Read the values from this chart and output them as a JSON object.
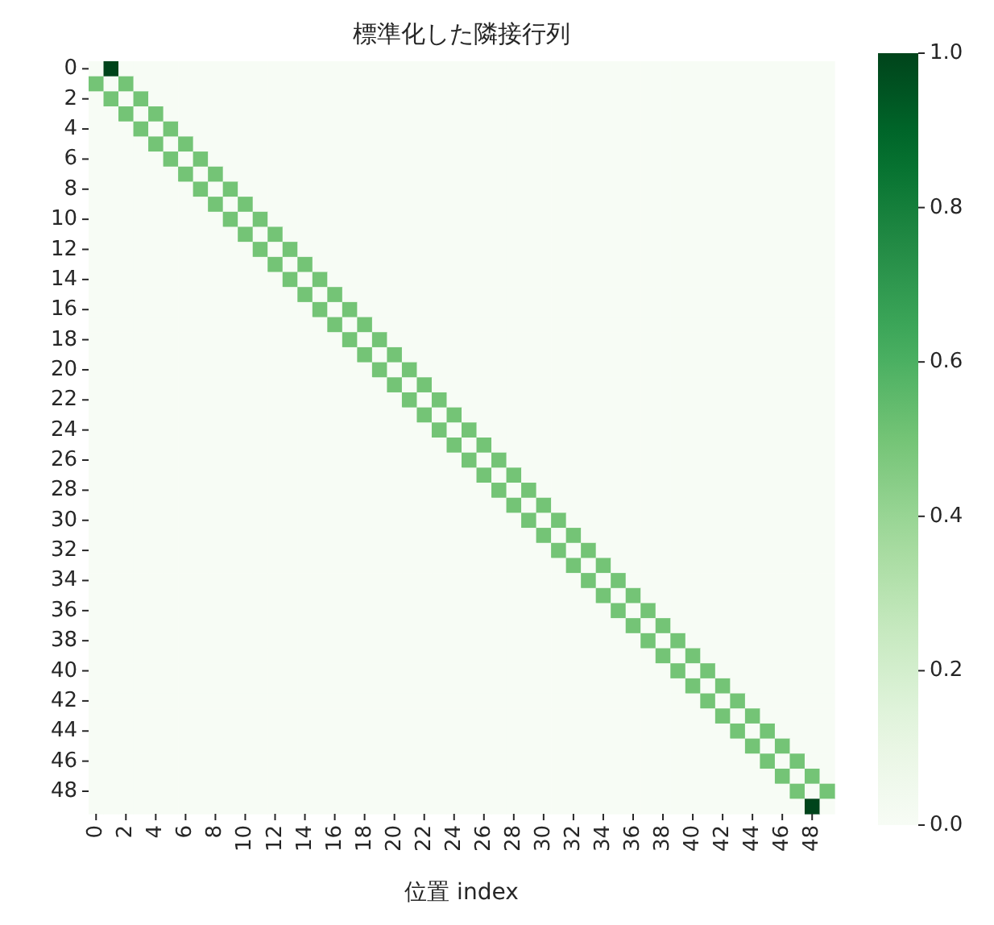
{
  "chart_data": {
    "type": "heatmap",
    "title": "標準化した隣接行列",
    "xlabel": "位置 index",
    "categories": [
      "0",
      null,
      "2",
      null,
      "4",
      null,
      "6",
      null,
      "8",
      null,
      "10",
      null,
      "12",
      null,
      "14",
      null,
      "16",
      null,
      "18",
      null,
      "20",
      null,
      "22",
      null,
      "24",
      null,
      "26",
      null,
      "28",
      null,
      "30",
      null,
      "32",
      null,
      "34",
      null,
      "36",
      null,
      "38",
      null,
      "40",
      null,
      "42",
      null,
      "44",
      null,
      "46",
      null,
      "48",
      null
    ],
    "y_categories": [
      "0",
      null,
      "2",
      null,
      "4",
      null,
      "6",
      null,
      "8",
      null,
      "10",
      null,
      "12",
      null,
      "14",
      null,
      "16",
      null,
      "18",
      null,
      "20",
      null,
      "22",
      null,
      "24",
      null,
      "26",
      null,
      "28",
      null,
      "30",
      null,
      "32",
      null,
      "34",
      null,
      "36",
      null,
      "38",
      null,
      "40",
      null,
      "42",
      null,
      "44",
      null,
      "46",
      null,
      "48",
      null
    ],
    "clim": [
      0,
      1
    ],
    "cticks": [
      {
        "value": 0,
        "label": "0.0"
      },
      {
        "value": 0.2,
        "label": "0.2"
      },
      {
        "value": 0.4,
        "label": "0.4"
      },
      {
        "value": 0.6,
        "label": "0.6"
      },
      {
        "value": 0.8,
        "label": "0.8"
      },
      {
        "value": 1,
        "label": "1.0"
      }
    ],
    "cells": [
      [
        0,
        1,
        0,
        0,
        0,
        0,
        0,
        0,
        0,
        0,
        0,
        0,
        0,
        0,
        0,
        0,
        0,
        0,
        0,
        0,
        0,
        0,
        0,
        0,
        0,
        0,
        0,
        0,
        0,
        0,
        0,
        0,
        0,
        0,
        0,
        0,
        0,
        0,
        0,
        0,
        0,
        0,
        0,
        0,
        0,
        0,
        0,
        0,
        0,
        0
      ],
      [
        0.5,
        0,
        0.5,
        0,
        0,
        0,
        0,
        0,
        0,
        0,
        0,
        0,
        0,
        0,
        0,
        0,
        0,
        0,
        0,
        0,
        0,
        0,
        0,
        0,
        0,
        0,
        0,
        0,
        0,
        0,
        0,
        0,
        0,
        0,
        0,
        0,
        0,
        0,
        0,
        0,
        0,
        0,
        0,
        0,
        0,
        0,
        0,
        0,
        0,
        0
      ],
      [
        0,
        0.5,
        0,
        0.5,
        0,
        0,
        0,
        0,
        0,
        0,
        0,
        0,
        0,
        0,
        0,
        0,
        0,
        0,
        0,
        0,
        0,
        0,
        0,
        0,
        0,
        0,
        0,
        0,
        0,
        0,
        0,
        0,
        0,
        0,
        0,
        0,
        0,
        0,
        0,
        0,
        0,
        0,
        0,
        0,
        0,
        0,
        0,
        0,
        0,
        0
      ],
      [
        0,
        0,
        0.5,
        0,
        0.5,
        0,
        0,
        0,
        0,
        0,
        0,
        0,
        0,
        0,
        0,
        0,
        0,
        0,
        0,
        0,
        0,
        0,
        0,
        0,
        0,
        0,
        0,
        0,
        0,
        0,
        0,
        0,
        0,
        0,
        0,
        0,
        0,
        0,
        0,
        0,
        0,
        0,
        0,
        0,
        0,
        0,
        0,
        0,
        0,
        0
      ],
      [
        0,
        0,
        0,
        0.5,
        0,
        0.5,
        0,
        0,
        0,
        0,
        0,
        0,
        0,
        0,
        0,
        0,
        0,
        0,
        0,
        0,
        0,
        0,
        0,
        0,
        0,
        0,
        0,
        0,
        0,
        0,
        0,
        0,
        0,
        0,
        0,
        0,
        0,
        0,
        0,
        0,
        0,
        0,
        0,
        0,
        0,
        0,
        0,
        0,
        0,
        0
      ],
      [
        0,
        0,
        0,
        0,
        0.5,
        0,
        0.5,
        0,
        0,
        0,
        0,
        0,
        0,
        0,
        0,
        0,
        0,
        0,
        0,
        0,
        0,
        0,
        0,
        0,
        0,
        0,
        0,
        0,
        0,
        0,
        0,
        0,
        0,
        0,
        0,
        0,
        0,
        0,
        0,
        0,
        0,
        0,
        0,
        0,
        0,
        0,
        0,
        0,
        0,
        0
      ],
      [
        0,
        0,
        0,
        0,
        0,
        0.5,
        0,
        0.5,
        0,
        0,
        0,
        0,
        0,
        0,
        0,
        0,
        0,
        0,
        0,
        0,
        0,
        0,
        0,
        0,
        0,
        0,
        0,
        0,
        0,
        0,
        0,
        0,
        0,
        0,
        0,
        0,
        0,
        0,
        0,
        0,
        0,
        0,
        0,
        0,
        0,
        0,
        0,
        0,
        0,
        0
      ],
      [
        0,
        0,
        0,
        0,
        0,
        0,
        0.5,
        0,
        0.5,
        0,
        0,
        0,
        0,
        0,
        0,
        0,
        0,
        0,
        0,
        0,
        0,
        0,
        0,
        0,
        0,
        0,
        0,
        0,
        0,
        0,
        0,
        0,
        0,
        0,
        0,
        0,
        0,
        0,
        0,
        0,
        0,
        0,
        0,
        0,
        0,
        0,
        0,
        0,
        0,
        0
      ],
      [
        0,
        0,
        0,
        0,
        0,
        0,
        0,
        0.5,
        0,
        0.5,
        0,
        0,
        0,
        0,
        0,
        0,
        0,
        0,
        0,
        0,
        0,
        0,
        0,
        0,
        0,
        0,
        0,
        0,
        0,
        0,
        0,
        0,
        0,
        0,
        0,
        0,
        0,
        0,
        0,
        0,
        0,
        0,
        0,
        0,
        0,
        0,
        0,
        0,
        0,
        0
      ],
      [
        0,
        0,
        0,
        0,
        0,
        0,
        0,
        0,
        0.5,
        0,
        0.5,
        0,
        0,
        0,
        0,
        0,
        0,
        0,
        0,
        0,
        0,
        0,
        0,
        0,
        0,
        0,
        0,
        0,
        0,
        0,
        0,
        0,
        0,
        0,
        0,
        0,
        0,
        0,
        0,
        0,
        0,
        0,
        0,
        0,
        0,
        0,
        0,
        0,
        0,
        0
      ],
      [
        0,
        0,
        0,
        0,
        0,
        0,
        0,
        0,
        0,
        0.5,
        0,
        0.5,
        0,
        0,
        0,
        0,
        0,
        0,
        0,
        0,
        0,
        0,
        0,
        0,
        0,
        0,
        0,
        0,
        0,
        0,
        0,
        0,
        0,
        0,
        0,
        0,
        0,
        0,
        0,
        0,
        0,
        0,
        0,
        0,
        0,
        0,
        0,
        0,
        0,
        0
      ],
      [
        0,
        0,
        0,
        0,
        0,
        0,
        0,
        0,
        0,
        0,
        0.5,
        0,
        0.5,
        0,
        0,
        0,
        0,
        0,
        0,
        0,
        0,
        0,
        0,
        0,
        0,
        0,
        0,
        0,
        0,
        0,
        0,
        0,
        0,
        0,
        0,
        0,
        0,
        0,
        0,
        0,
        0,
        0,
        0,
        0,
        0,
        0,
        0,
        0,
        0,
        0
      ],
      [
        0,
        0,
        0,
        0,
        0,
        0,
        0,
        0,
        0,
        0,
        0,
        0.5,
        0,
        0.5,
        0,
        0,
        0,
        0,
        0,
        0,
        0,
        0,
        0,
        0,
        0,
        0,
        0,
        0,
        0,
        0,
        0,
        0,
        0,
        0,
        0,
        0,
        0,
        0,
        0,
        0,
        0,
        0,
        0,
        0,
        0,
        0,
        0,
        0,
        0,
        0
      ],
      [
        0,
        0,
        0,
        0,
        0,
        0,
        0,
        0,
        0,
        0,
        0,
        0,
        0.5,
        0,
        0.5,
        0,
        0,
        0,
        0,
        0,
        0,
        0,
        0,
        0,
        0,
        0,
        0,
        0,
        0,
        0,
        0,
        0,
        0,
        0,
        0,
        0,
        0,
        0,
        0,
        0,
        0,
        0,
        0,
        0,
        0,
        0,
        0,
        0,
        0,
        0
      ],
      [
        0,
        0,
        0,
        0,
        0,
        0,
        0,
        0,
        0,
        0,
        0,
        0,
        0,
        0.5,
        0,
        0.5,
        0,
        0,
        0,
        0,
        0,
        0,
        0,
        0,
        0,
        0,
        0,
        0,
        0,
        0,
        0,
        0,
        0,
        0,
        0,
        0,
        0,
        0,
        0,
        0,
        0,
        0,
        0,
        0,
        0,
        0,
        0,
        0,
        0,
        0
      ],
      [
        0,
        0,
        0,
        0,
        0,
        0,
        0,
        0,
        0,
        0,
        0,
        0,
        0,
        0,
        0.5,
        0,
        0.5,
        0,
        0,
        0,
        0,
        0,
        0,
        0,
        0,
        0,
        0,
        0,
        0,
        0,
        0,
        0,
        0,
        0,
        0,
        0,
        0,
        0,
        0,
        0,
        0,
        0,
        0,
        0,
        0,
        0,
        0,
        0,
        0,
        0
      ],
      [
        0,
        0,
        0,
        0,
        0,
        0,
        0,
        0,
        0,
        0,
        0,
        0,
        0,
        0,
        0,
        0.5,
        0,
        0.5,
        0,
        0,
        0,
        0,
        0,
        0,
        0,
        0,
        0,
        0,
        0,
        0,
        0,
        0,
        0,
        0,
        0,
        0,
        0,
        0,
        0,
        0,
        0,
        0,
        0,
        0,
        0,
        0,
        0,
        0,
        0,
        0
      ],
      [
        0,
        0,
        0,
        0,
        0,
        0,
        0,
        0,
        0,
        0,
        0,
        0,
        0,
        0,
        0,
        0,
        0.5,
        0,
        0.5,
        0,
        0,
        0,
        0,
        0,
        0,
        0,
        0,
        0,
        0,
        0,
        0,
        0,
        0,
        0,
        0,
        0,
        0,
        0,
        0,
        0,
        0,
        0,
        0,
        0,
        0,
        0,
        0,
        0,
        0,
        0
      ],
      [
        0,
        0,
        0,
        0,
        0,
        0,
        0,
        0,
        0,
        0,
        0,
        0,
        0,
        0,
        0,
        0,
        0,
        0.5,
        0,
        0.5,
        0,
        0,
        0,
        0,
        0,
        0,
        0,
        0,
        0,
        0,
        0,
        0,
        0,
        0,
        0,
        0,
        0,
        0,
        0,
        0,
        0,
        0,
        0,
        0,
        0,
        0,
        0,
        0,
        0,
        0
      ],
      [
        0,
        0,
        0,
        0,
        0,
        0,
        0,
        0,
        0,
        0,
        0,
        0,
        0,
        0,
        0,
        0,
        0,
        0,
        0.5,
        0,
        0.5,
        0,
        0,
        0,
        0,
        0,
        0,
        0,
        0,
        0,
        0,
        0,
        0,
        0,
        0,
        0,
        0,
        0,
        0,
        0,
        0,
        0,
        0,
        0,
        0,
        0,
        0,
        0,
        0,
        0
      ],
      [
        0,
        0,
        0,
        0,
        0,
        0,
        0,
        0,
        0,
        0,
        0,
        0,
        0,
        0,
        0,
        0,
        0,
        0,
        0,
        0.5,
        0,
        0.5,
        0,
        0,
        0,
        0,
        0,
        0,
        0,
        0,
        0,
        0,
        0,
        0,
        0,
        0,
        0,
        0,
        0,
        0,
        0,
        0,
        0,
        0,
        0,
        0,
        0,
        0,
        0,
        0
      ],
      [
        0,
        0,
        0,
        0,
        0,
        0,
        0,
        0,
        0,
        0,
        0,
        0,
        0,
        0,
        0,
        0,
        0,
        0,
        0,
        0,
        0.5,
        0,
        0.5,
        0,
        0,
        0,
        0,
        0,
        0,
        0,
        0,
        0,
        0,
        0,
        0,
        0,
        0,
        0,
        0,
        0,
        0,
        0,
        0,
        0,
        0,
        0,
        0,
        0,
        0,
        0
      ],
      [
        0,
        0,
        0,
        0,
        0,
        0,
        0,
        0,
        0,
        0,
        0,
        0,
        0,
        0,
        0,
        0,
        0,
        0,
        0,
        0,
        0,
        0.5,
        0,
        0.5,
        0,
        0,
        0,
        0,
        0,
        0,
        0,
        0,
        0,
        0,
        0,
        0,
        0,
        0,
        0,
        0,
        0,
        0,
        0,
        0,
        0,
        0,
        0,
        0,
        0,
        0
      ],
      [
        0,
        0,
        0,
        0,
        0,
        0,
        0,
        0,
        0,
        0,
        0,
        0,
        0,
        0,
        0,
        0,
        0,
        0,
        0,
        0,
        0,
        0,
        0.5,
        0,
        0.5,
        0,
        0,
        0,
        0,
        0,
        0,
        0,
        0,
        0,
        0,
        0,
        0,
        0,
        0,
        0,
        0,
        0,
        0,
        0,
        0,
        0,
        0,
        0,
        0,
        0
      ],
      [
        0,
        0,
        0,
        0,
        0,
        0,
        0,
        0,
        0,
        0,
        0,
        0,
        0,
        0,
        0,
        0,
        0,
        0,
        0,
        0,
        0,
        0,
        0,
        0.5,
        0,
        0.5,
        0,
        0,
        0,
        0,
        0,
        0,
        0,
        0,
        0,
        0,
        0,
        0,
        0,
        0,
        0,
        0,
        0,
        0,
        0,
        0,
        0,
        0,
        0,
        0
      ],
      [
        0,
        0,
        0,
        0,
        0,
        0,
        0,
        0,
        0,
        0,
        0,
        0,
        0,
        0,
        0,
        0,
        0,
        0,
        0,
        0,
        0,
        0,
        0,
        0,
        0.5,
        0,
        0.5,
        0,
        0,
        0,
        0,
        0,
        0,
        0,
        0,
        0,
        0,
        0,
        0,
        0,
        0,
        0,
        0,
        0,
        0,
        0,
        0,
        0,
        0,
        0
      ],
      [
        0,
        0,
        0,
        0,
        0,
        0,
        0,
        0,
        0,
        0,
        0,
        0,
        0,
        0,
        0,
        0,
        0,
        0,
        0,
        0,
        0,
        0,
        0,
        0,
        0,
        0.5,
        0,
        0.5,
        0,
        0,
        0,
        0,
        0,
        0,
        0,
        0,
        0,
        0,
        0,
        0,
        0,
        0,
        0,
        0,
        0,
        0,
        0,
        0,
        0,
        0
      ],
      [
        0,
        0,
        0,
        0,
        0,
        0,
        0,
        0,
        0,
        0,
        0,
        0,
        0,
        0,
        0,
        0,
        0,
        0,
        0,
        0,
        0,
        0,
        0,
        0,
        0,
        0,
        0.5,
        0,
        0.5,
        0,
        0,
        0,
        0,
        0,
        0,
        0,
        0,
        0,
        0,
        0,
        0,
        0,
        0,
        0,
        0,
        0,
        0,
        0,
        0,
        0
      ],
      [
        0,
        0,
        0,
        0,
        0,
        0,
        0,
        0,
        0,
        0,
        0,
        0,
        0,
        0,
        0,
        0,
        0,
        0,
        0,
        0,
        0,
        0,
        0,
        0,
        0,
        0,
        0,
        0.5,
        0,
        0.5,
        0,
        0,
        0,
        0,
        0,
        0,
        0,
        0,
        0,
        0,
        0,
        0,
        0,
        0,
        0,
        0,
        0,
        0,
        0,
        0
      ],
      [
        0,
        0,
        0,
        0,
        0,
        0,
        0,
        0,
        0,
        0,
        0,
        0,
        0,
        0,
        0,
        0,
        0,
        0,
        0,
        0,
        0,
        0,
        0,
        0,
        0,
        0,
        0,
        0,
        0.5,
        0,
        0.5,
        0,
        0,
        0,
        0,
        0,
        0,
        0,
        0,
        0,
        0,
        0,
        0,
        0,
        0,
        0,
        0,
        0,
        0,
        0
      ],
      [
        0,
        0,
        0,
        0,
        0,
        0,
        0,
        0,
        0,
        0,
        0,
        0,
        0,
        0,
        0,
        0,
        0,
        0,
        0,
        0,
        0,
        0,
        0,
        0,
        0,
        0,
        0,
        0,
        0,
        0.5,
        0,
        0.5,
        0,
        0,
        0,
        0,
        0,
        0,
        0,
        0,
        0,
        0,
        0,
        0,
        0,
        0,
        0,
        0,
        0,
        0
      ],
      [
        0,
        0,
        0,
        0,
        0,
        0,
        0,
        0,
        0,
        0,
        0,
        0,
        0,
        0,
        0,
        0,
        0,
        0,
        0,
        0,
        0,
        0,
        0,
        0,
        0,
        0,
        0,
        0,
        0,
        0,
        0.5,
        0,
        0.5,
        0,
        0,
        0,
        0,
        0,
        0,
        0,
        0,
        0,
        0,
        0,
        0,
        0,
        0,
        0,
        0,
        0
      ],
      [
        0,
        0,
        0,
        0,
        0,
        0,
        0,
        0,
        0,
        0,
        0,
        0,
        0,
        0,
        0,
        0,
        0,
        0,
        0,
        0,
        0,
        0,
        0,
        0,
        0,
        0,
        0,
        0,
        0,
        0,
        0,
        0.5,
        0,
        0.5,
        0,
        0,
        0,
        0,
        0,
        0,
        0,
        0,
        0,
        0,
        0,
        0,
        0,
        0,
        0,
        0
      ],
      [
        0,
        0,
        0,
        0,
        0,
        0,
        0,
        0,
        0,
        0,
        0,
        0,
        0,
        0,
        0,
        0,
        0,
        0,
        0,
        0,
        0,
        0,
        0,
        0,
        0,
        0,
        0,
        0,
        0,
        0,
        0,
        0,
        0.5,
        0,
        0.5,
        0,
        0,
        0,
        0,
        0,
        0,
        0,
        0,
        0,
        0,
        0,
        0,
        0,
        0,
        0
      ],
      [
        0,
        0,
        0,
        0,
        0,
        0,
        0,
        0,
        0,
        0,
        0,
        0,
        0,
        0,
        0,
        0,
        0,
        0,
        0,
        0,
        0,
        0,
        0,
        0,
        0,
        0,
        0,
        0,
        0,
        0,
        0,
        0,
        0,
        0.5,
        0,
        0.5,
        0,
        0,
        0,
        0,
        0,
        0,
        0,
        0,
        0,
        0,
        0,
        0,
        0,
        0
      ],
      [
        0,
        0,
        0,
        0,
        0,
        0,
        0,
        0,
        0,
        0,
        0,
        0,
        0,
        0,
        0,
        0,
        0,
        0,
        0,
        0,
        0,
        0,
        0,
        0,
        0,
        0,
        0,
        0,
        0,
        0,
        0,
        0,
        0,
        0,
        0.5,
        0,
        0.5,
        0,
        0,
        0,
        0,
        0,
        0,
        0,
        0,
        0,
        0,
        0,
        0,
        0
      ],
      [
        0,
        0,
        0,
        0,
        0,
        0,
        0,
        0,
        0,
        0,
        0,
        0,
        0,
        0,
        0,
        0,
        0,
        0,
        0,
        0,
        0,
        0,
        0,
        0,
        0,
        0,
        0,
        0,
        0,
        0,
        0,
        0,
        0,
        0,
        0,
        0.5,
        0,
        0.5,
        0,
        0,
        0,
        0,
        0,
        0,
        0,
        0,
        0,
        0,
        0,
        0
      ],
      [
        0,
        0,
        0,
        0,
        0,
        0,
        0,
        0,
        0,
        0,
        0,
        0,
        0,
        0,
        0,
        0,
        0,
        0,
        0,
        0,
        0,
        0,
        0,
        0,
        0,
        0,
        0,
        0,
        0,
        0,
        0,
        0,
        0,
        0,
        0,
        0,
        0.5,
        0,
        0.5,
        0,
        0,
        0,
        0,
        0,
        0,
        0,
        0,
        0,
        0,
        0
      ],
      [
        0,
        0,
        0,
        0,
        0,
        0,
        0,
        0,
        0,
        0,
        0,
        0,
        0,
        0,
        0,
        0,
        0,
        0,
        0,
        0,
        0,
        0,
        0,
        0,
        0,
        0,
        0,
        0,
        0,
        0,
        0,
        0,
        0,
        0,
        0,
        0,
        0,
        0.5,
        0,
        0.5,
        0,
        0,
        0,
        0,
        0,
        0,
        0,
        0,
        0,
        0
      ],
      [
        0,
        0,
        0,
        0,
        0,
        0,
        0,
        0,
        0,
        0,
        0,
        0,
        0,
        0,
        0,
        0,
        0,
        0,
        0,
        0,
        0,
        0,
        0,
        0,
        0,
        0,
        0,
        0,
        0,
        0,
        0,
        0,
        0,
        0,
        0,
        0,
        0,
        0,
        0.5,
        0,
        0.5,
        0,
        0,
        0,
        0,
        0,
        0,
        0,
        0,
        0
      ],
      [
        0,
        0,
        0,
        0,
        0,
        0,
        0,
        0,
        0,
        0,
        0,
        0,
        0,
        0,
        0,
        0,
        0,
        0,
        0,
        0,
        0,
        0,
        0,
        0,
        0,
        0,
        0,
        0,
        0,
        0,
        0,
        0,
        0,
        0,
        0,
        0,
        0,
        0,
        0,
        0.5,
        0,
        0.5,
        0,
        0,
        0,
        0,
        0,
        0,
        0,
        0
      ],
      [
        0,
        0,
        0,
        0,
        0,
        0,
        0,
        0,
        0,
        0,
        0,
        0,
        0,
        0,
        0,
        0,
        0,
        0,
        0,
        0,
        0,
        0,
        0,
        0,
        0,
        0,
        0,
        0,
        0,
        0,
        0,
        0,
        0,
        0,
        0,
        0,
        0,
        0,
        0,
        0,
        0.5,
        0,
        0.5,
        0,
        0,
        0,
        0,
        0,
        0,
        0
      ],
      [
        0,
        0,
        0,
        0,
        0,
        0,
        0,
        0,
        0,
        0,
        0,
        0,
        0,
        0,
        0,
        0,
        0,
        0,
        0,
        0,
        0,
        0,
        0,
        0,
        0,
        0,
        0,
        0,
        0,
        0,
        0,
        0,
        0,
        0,
        0,
        0,
        0,
        0,
        0,
        0,
        0,
        0.5,
        0,
        0.5,
        0,
        0,
        0,
        0,
        0,
        0
      ],
      [
        0,
        0,
        0,
        0,
        0,
        0,
        0,
        0,
        0,
        0,
        0,
        0,
        0,
        0,
        0,
        0,
        0,
        0,
        0,
        0,
        0,
        0,
        0,
        0,
        0,
        0,
        0,
        0,
        0,
        0,
        0,
        0,
        0,
        0,
        0,
        0,
        0,
        0,
        0,
        0,
        0,
        0,
        0.5,
        0,
        0.5,
        0,
        0,
        0,
        0,
        0
      ],
      [
        0,
        0,
        0,
        0,
        0,
        0,
        0,
        0,
        0,
        0,
        0,
        0,
        0,
        0,
        0,
        0,
        0,
        0,
        0,
        0,
        0,
        0,
        0,
        0,
        0,
        0,
        0,
        0,
        0,
        0,
        0,
        0,
        0,
        0,
        0,
        0,
        0,
        0,
        0,
        0,
        0,
        0,
        0,
        0.5,
        0,
        0.5,
        0,
        0,
        0,
        0
      ],
      [
        0,
        0,
        0,
        0,
        0,
        0,
        0,
        0,
        0,
        0,
        0,
        0,
        0,
        0,
        0,
        0,
        0,
        0,
        0,
        0,
        0,
        0,
        0,
        0,
        0,
        0,
        0,
        0,
        0,
        0,
        0,
        0,
        0,
        0,
        0,
        0,
        0,
        0,
        0,
        0,
        0,
        0,
        0,
        0,
        0.5,
        0,
        0.5,
        0,
        0,
        0
      ],
      [
        0,
        0,
        0,
        0,
        0,
        0,
        0,
        0,
        0,
        0,
        0,
        0,
        0,
        0,
        0,
        0,
        0,
        0,
        0,
        0,
        0,
        0,
        0,
        0,
        0,
        0,
        0,
        0,
        0,
        0,
        0,
        0,
        0,
        0,
        0,
        0,
        0,
        0,
        0,
        0,
        0,
        0,
        0,
        0,
        0,
        0.5,
        0,
        0.5,
        0,
        0
      ],
      [
        0,
        0,
        0,
        0,
        0,
        0,
        0,
        0,
        0,
        0,
        0,
        0,
        0,
        0,
        0,
        0,
        0,
        0,
        0,
        0,
        0,
        0,
        0,
        0,
        0,
        0,
        0,
        0,
        0,
        0,
        0,
        0,
        0,
        0,
        0,
        0,
        0,
        0,
        0,
        0,
        0,
        0,
        0,
        0,
        0,
        0,
        0.5,
        0,
        0.5,
        0
      ],
      [
        0,
        0,
        0,
        0,
        0,
        0,
        0,
        0,
        0,
        0,
        0,
        0,
        0,
        0,
        0,
        0,
        0,
        0,
        0,
        0,
        0,
        0,
        0,
        0,
        0,
        0,
        0,
        0,
        0,
        0,
        0,
        0,
        0,
        0,
        0,
        0,
        0,
        0,
        0,
        0,
        0,
        0,
        0,
        0,
        0,
        0,
        0,
        0.5,
        0,
        0.5
      ],
      [
        0,
        0,
        0,
        0,
        0,
        0,
        0,
        0,
        0,
        0,
        0,
        0,
        0,
        0,
        0,
        0,
        0,
        0,
        0,
        0,
        0,
        0,
        0,
        0,
        0,
        0,
        0,
        0,
        0,
        0,
        0,
        0,
        0,
        0,
        0,
        0,
        0,
        0,
        0,
        0,
        0,
        0,
        0,
        0,
        0,
        0,
        0,
        0,
        1,
        0
      ]
    ]
  }
}
